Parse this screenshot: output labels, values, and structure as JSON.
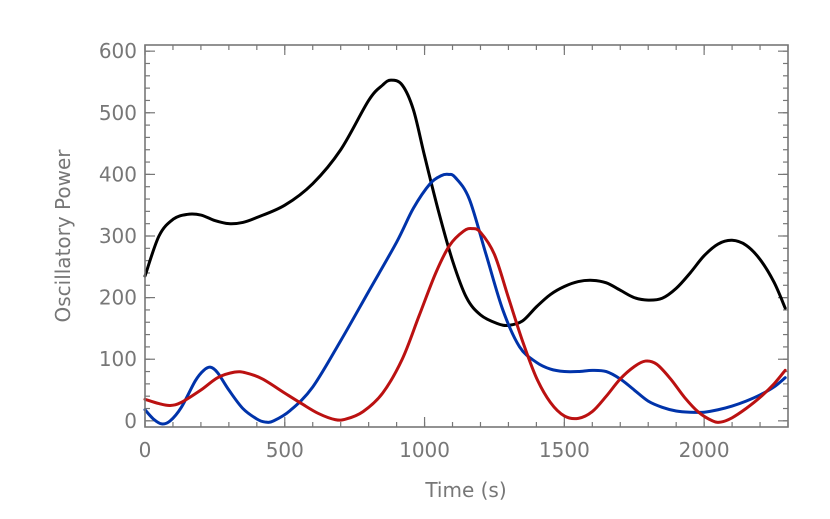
{
  "chart_data": {
    "type": "line",
    "title": "",
    "xlabel": "Time (s)",
    "ylabel": "Oscillatory  Power",
    "xlim": [
      0,
      2300
    ],
    "ylim": [
      -10,
      610
    ],
    "x_ticks": [
      0,
      500,
      1000,
      1500,
      2000
    ],
    "x_tick_labels": [
      "0",
      "500",
      "1000",
      "1500",
      "2000"
    ],
    "y_ticks": [
      0,
      100,
      200,
      300,
      400,
      500,
      600
    ],
    "y_tick_labels": [
      "0",
      "100",
      "200",
      "300",
      "400",
      "500",
      "600"
    ],
    "x_minor_step": 100,
    "y_minor_step": 20,
    "grid": false,
    "series": [
      {
        "color": "#000000",
        "points": [
          [
            0,
            235
          ],
          [
            50,
            300
          ],
          [
            100,
            327
          ],
          [
            150,
            335
          ],
          [
            200,
            334
          ],
          [
            250,
            325
          ],
          [
            300,
            320
          ],
          [
            350,
            322
          ],
          [
            400,
            330
          ],
          [
            500,
            350
          ],
          [
            600,
            385
          ],
          [
            700,
            440
          ],
          [
            800,
            520
          ],
          [
            850,
            545
          ],
          [
            880,
            553
          ],
          [
            920,
            545
          ],
          [
            960,
            505
          ],
          [
            1000,
            430
          ],
          [
            1050,
            340
          ],
          [
            1100,
            260
          ],
          [
            1150,
            200
          ],
          [
            1200,
            172
          ],
          [
            1260,
            158
          ],
          [
            1300,
            155
          ],
          [
            1350,
            162
          ],
          [
            1400,
            185
          ],
          [
            1450,
            205
          ],
          [
            1500,
            218
          ],
          [
            1550,
            226
          ],
          [
            1600,
            228
          ],
          [
            1650,
            224
          ],
          [
            1700,
            212
          ],
          [
            1750,
            200
          ],
          [
            1800,
            196
          ],
          [
            1850,
            199
          ],
          [
            1900,
            215
          ],
          [
            1950,
            240
          ],
          [
            2000,
            268
          ],
          [
            2050,
            287
          ],
          [
            2100,
            293
          ],
          [
            2150,
            285
          ],
          [
            2200,
            262
          ],
          [
            2250,
            225
          ],
          [
            2290,
            183
          ]
        ]
      },
      {
        "color": "#0033aa",
        "points": [
          [
            0,
            18
          ],
          [
            30,
            3
          ],
          [
            60,
            -5
          ],
          [
            90,
            0
          ],
          [
            130,
            22
          ],
          [
            180,
            65
          ],
          [
            210,
            82
          ],
          [
            235,
            87
          ],
          [
            260,
            78
          ],
          [
            300,
            50
          ],
          [
            350,
            20
          ],
          [
            400,
            3
          ],
          [
            430,
            -2
          ],
          [
            460,
            0
          ],
          [
            520,
            17
          ],
          [
            600,
            55
          ],
          [
            700,
            130
          ],
          [
            800,
            210
          ],
          [
            900,
            290
          ],
          [
            960,
            345
          ],
          [
            1020,
            385
          ],
          [
            1060,
            398
          ],
          [
            1085,
            400
          ],
          [
            1110,
            395
          ],
          [
            1160,
            360
          ],
          [
            1220,
            270
          ],
          [
            1280,
            180
          ],
          [
            1340,
            120
          ],
          [
            1400,
            95
          ],
          [
            1450,
            84
          ],
          [
            1500,
            80
          ],
          [
            1550,
            80
          ],
          [
            1600,
            82
          ],
          [
            1650,
            80
          ],
          [
            1700,
            68
          ],
          [
            1750,
            50
          ],
          [
            1800,
            32
          ],
          [
            1850,
            22
          ],
          [
            1900,
            16
          ],
          [
            1950,
            14
          ],
          [
            2000,
            14
          ],
          [
            2050,
            18
          ],
          [
            2100,
            24
          ],
          [
            2150,
            32
          ],
          [
            2200,
            42
          ],
          [
            2250,
            55
          ],
          [
            2290,
            70
          ]
        ]
      },
      {
        "color": "#bb1111",
        "points": [
          [
            0,
            35
          ],
          [
            50,
            28
          ],
          [
            90,
            25
          ],
          [
            130,
            30
          ],
          [
            200,
            50
          ],
          [
            260,
            70
          ],
          [
            320,
            79
          ],
          [
            360,
            78
          ],
          [
            420,
            68
          ],
          [
            500,
            45
          ],
          [
            560,
            28
          ],
          [
            620,
            12
          ],
          [
            680,
            2
          ],
          [
            720,
            3
          ],
          [
            780,
            15
          ],
          [
            850,
            45
          ],
          [
            920,
            100
          ],
          [
            980,
            170
          ],
          [
            1040,
            240
          ],
          [
            1090,
            285
          ],
          [
            1140,
            308
          ],
          [
            1170,
            312
          ],
          [
            1200,
            306
          ],
          [
            1250,
            270
          ],
          [
            1300,
            200
          ],
          [
            1350,
            130
          ],
          [
            1400,
            70
          ],
          [
            1450,
            30
          ],
          [
            1500,
            8
          ],
          [
            1550,
            4
          ],
          [
            1600,
            15
          ],
          [
            1650,
            40
          ],
          [
            1700,
            68
          ],
          [
            1750,
            88
          ],
          [
            1790,
            97
          ],
          [
            1830,
            92
          ],
          [
            1880,
            68
          ],
          [
            1930,
            38
          ],
          [
            1980,
            14
          ],
          [
            2030,
            0
          ],
          [
            2060,
            -2
          ],
          [
            2100,
            5
          ],
          [
            2150,
            20
          ],
          [
            2200,
            38
          ],
          [
            2250,
            60
          ],
          [
            2290,
            82
          ]
        ]
      }
    ]
  }
}
